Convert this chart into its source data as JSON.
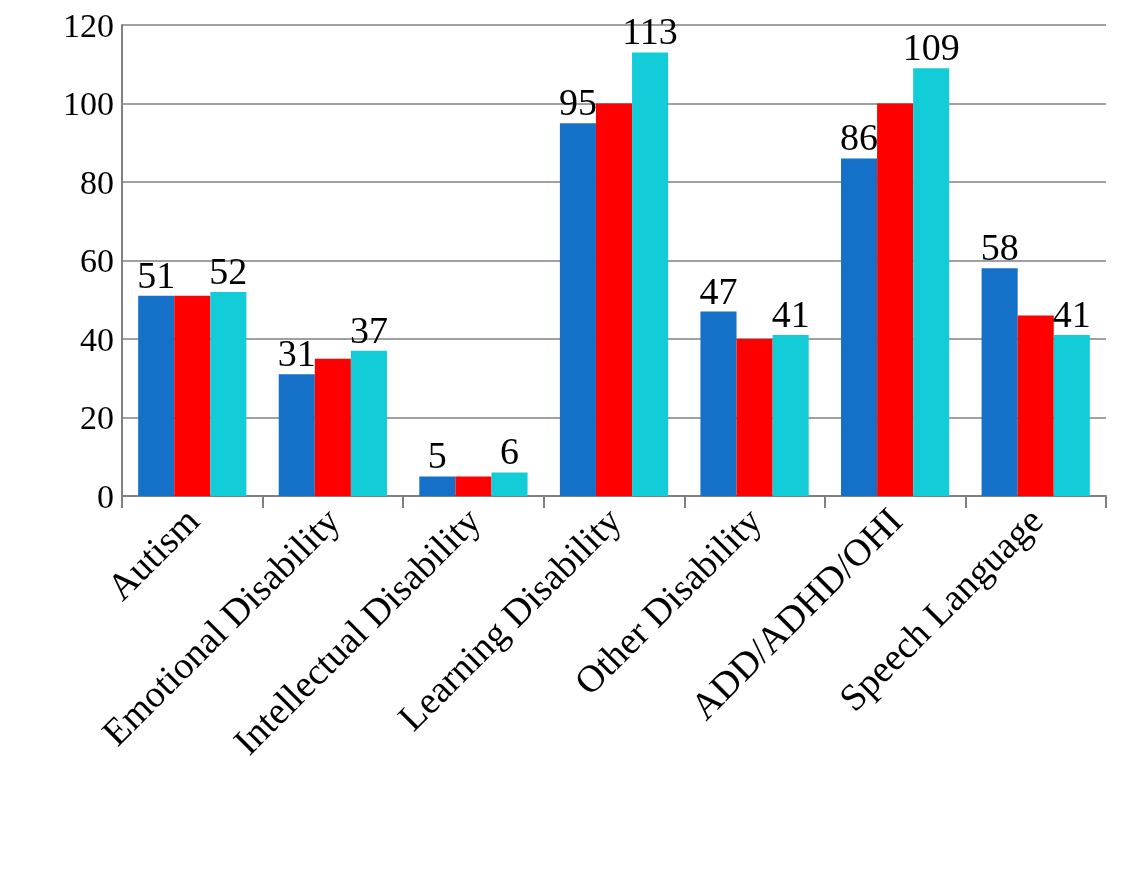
{
  "chart_data": {
    "type": "bar",
    "categories": [
      "Autism",
      "Emotional Disability",
      "Intellectual Disability",
      "Learning Disability",
      "Other Disability",
      "ADD/ADHD/OHI",
      "Speech Language"
    ],
    "series": [
      {
        "color": "#1570c8",
        "values": [
          51,
          31,
          5,
          95,
          47,
          86,
          58
        ],
        "value_labels": [
          "51",
          "31",
          "5",
          "95",
          "47",
          "86",
          "58"
        ]
      },
      {
        "color": "#ff0000",
        "values": [
          51,
          35,
          5,
          100,
          40,
          100,
          46
        ]
      },
      {
        "color": "#12ccd8",
        "values": [
          52,
          37,
          6,
          113,
          41,
          109,
          41
        ],
        "value_labels": [
          "52",
          "37",
          "6",
          "113",
          "41",
          "109",
          "41"
        ]
      }
    ],
    "ylim": [
      0,
      120
    ],
    "yticks": [
      0,
      20,
      40,
      60,
      80,
      100,
      120
    ],
    "grid": "y"
  }
}
